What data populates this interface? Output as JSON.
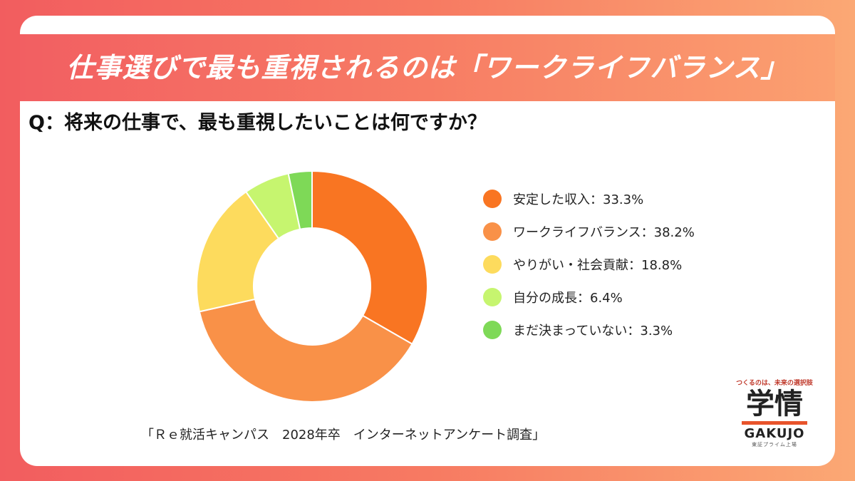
{
  "header": {
    "title": "仕事選びで最も重視されるのは「ワークライフバランス」"
  },
  "question": "Q：将来の仕事で、最も重視したいことは何ですか？",
  "source": "「Ｒｅ就活キャンパス　2028年卒　インターネットアンケート調査」",
  "logo": {
    "tagline": "つくるのは、未来の選択肢",
    "kanji": "学情",
    "name": "GAKUJO",
    "sub": "東証プライム上場",
    "accent": "#e8542b"
  },
  "chart_data": {
    "type": "pie",
    "donut": true,
    "title": "",
    "legend_position": "right",
    "start_angle": "top, clockwise",
    "slices": [
      {
        "label": "安定した収入：33.3%",
        "name": "安定した収入",
        "value": 33.3,
        "color": "#f97522"
      },
      {
        "label": "ワークライフバランス：38.2%",
        "name": "ワークライフバランス",
        "value": 38.2,
        "color": "#f99148"
      },
      {
        "label": "やりがい・社会貢献：18.8%",
        "name": "やりがい・社会貢献",
        "value": 18.8,
        "color": "#fddb5d"
      },
      {
        "label": "自分の成長：6.4%",
        "name": "自分の成長",
        "value": 6.4,
        "color": "#c6f56f"
      },
      {
        "label": "まだ決まっていない：3.3%",
        "name": "まだ決まっていない",
        "value": 3.3,
        "color": "#7ed957"
      }
    ]
  }
}
